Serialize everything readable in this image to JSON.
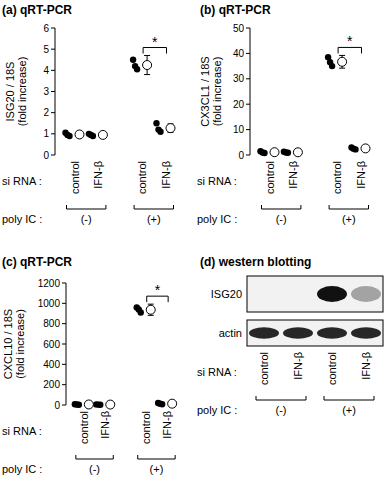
{
  "chart_data": [
    {
      "type": "dot",
      "title": "(a) qRT-PCR",
      "ylabel": [
        "ISG20 / 18S",
        "(fold increase)"
      ],
      "categories": [
        "control",
        "IFN-β",
        "control",
        "IFN-β"
      ],
      "category_label": "si RNA :",
      "group_label": "poly IC :",
      "groups": [
        "(-)",
        "(+)"
      ],
      "points": [
        [
          1.05,
          0.95,
          0.9
        ],
        [
          1.0,
          0.95,
          0.9
        ],
        [
          4.5,
          4.2,
          4.05
        ],
        [
          1.5,
          1.2,
          1.1
        ]
      ],
      "values": [
        0.97,
        0.95,
        4.25,
        1.27
      ],
      "errors": [
        0.08,
        0.05,
        0.45,
        0.2
      ],
      "ylim": [
        0,
        6
      ],
      "yticks": [
        0,
        1,
        2,
        3,
        4,
        5,
        6
      ],
      "color": "#000000",
      "significance": {
        "between": [
          2,
          3
        ],
        "label": "*"
      }
    },
    {
      "type": "dot",
      "title": "(b) qRT-PCR",
      "ylabel": [
        "CX3CL1 / 18S",
        "(fold increase)"
      ],
      "categories": [
        "control",
        "IFN-β",
        "control",
        "IFN-β"
      ],
      "category_label": "si RNA :",
      "group_label": "poly IC :",
      "groups": [
        "(-)",
        "(+)"
      ],
      "points": [
        [
          1.5,
          1.0,
          0.8
        ],
        [
          1.3,
          1.0,
          0.9
        ],
        [
          38.5,
          36.5,
          35.0
        ],
        [
          3.0,
          2.5,
          2.2
        ]
      ],
      "values": [
        1.1,
        1.07,
        36.7,
        2.6
      ],
      "errors": [
        0.35,
        0.2,
        2.5,
        0.4
      ],
      "ylim": [
        0,
        50
      ],
      "yticks": [
        0,
        10,
        20,
        30,
        40,
        50
      ],
      "color": "#000000",
      "significance": {
        "between": [
          2,
          3
        ],
        "label": "*"
      }
    },
    {
      "type": "dot",
      "title": "(c) qRT-PCR",
      "ylabel": [
        "CXCL10 / 18S",
        "(fold increase)"
      ],
      "categories": [
        "control",
        "IFN-β",
        "control",
        "IFN-β"
      ],
      "category_label": "si RNA :",
      "group_label": "poly IC :",
      "groups": [
        "(-)",
        "(+)"
      ],
      "points": [
        [
          8,
          5,
          3
        ],
        [
          6,
          4,
          3
        ],
        [
          960,
          940,
          910
        ],
        [
          20,
          12,
          8
        ]
      ],
      "values": [
        5.3,
        4.3,
        937,
        13
      ],
      "errors": [
        2.5,
        1.5,
        55,
        6
      ],
      "ylim": [
        0,
        1200
      ],
      "yticks": [
        0,
        200,
        400,
        600,
        800,
        1000,
        1200
      ],
      "color": "#000000",
      "significance": {
        "between": [
          2,
          3
        ],
        "label": "*"
      }
    }
  ],
  "western_blot": {
    "title": "(d) western blotting",
    "rows": [
      {
        "label": "ISG20",
        "intensity": [
          0,
          0,
          1,
          0.35
        ]
      },
      {
        "label": "actin",
        "intensity": [
          0.9,
          0.9,
          0.9,
          0.9
        ]
      }
    ],
    "categories": [
      "control",
      "IFN-β",
      "control",
      "IFN-β"
    ],
    "category_label": "si RNA :",
    "group_label": "poly IC :",
    "groups": [
      "(-)",
      "(+)"
    ]
  }
}
